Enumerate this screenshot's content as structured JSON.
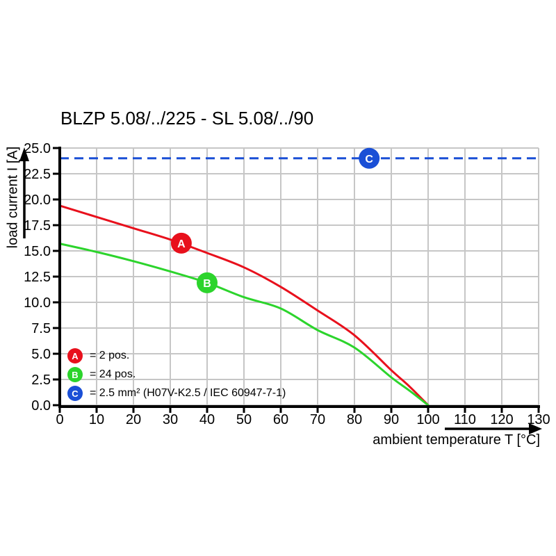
{
  "page": {
    "background": "#ffffff"
  },
  "chart_data": {
    "type": "line",
    "title": "BLZP 5.08/../225 - SL 5.08/../90",
    "xlabel": "ambient temperature T [°C]",
    "ylabel": "load current I [A]",
    "xlim": [
      0,
      130
    ],
    "ylim": [
      0,
      25
    ],
    "x_ticks": [
      0,
      10,
      20,
      30,
      40,
      50,
      60,
      70,
      80,
      90,
      100,
      110,
      120,
      130
    ],
    "y_ticks": [
      0,
      2.5,
      5,
      7.5,
      10,
      12.5,
      15,
      17.5,
      20,
      22.5,
      25
    ],
    "y_tick_labels": [
      "0.0",
      "2.5",
      "5.0",
      "7.5",
      "10.0",
      "12.5",
      "15.0",
      "17.5",
      "20.0",
      "22.5",
      "25.0"
    ],
    "grid": true,
    "legend_position": "lower-left",
    "colors": {
      "grid": "#c6c6c6",
      "axis": "#000000",
      "marker_letter": "#ffffff"
    },
    "series": [
      {
        "name": "A",
        "label": "= 2 pos.",
        "color": "#e8101c",
        "line_style": "solid",
        "points": [
          [
            0,
            19.4
          ],
          [
            10,
            18.3
          ],
          [
            20,
            17.2
          ],
          [
            30,
            16.1
          ],
          [
            40,
            14.8
          ],
          [
            50,
            13.4
          ],
          [
            60,
            11.5
          ],
          [
            70,
            9.2
          ],
          [
            80,
            6.8
          ],
          [
            90,
            3.4
          ],
          [
            95,
            1.8
          ],
          [
            100,
            0
          ]
        ],
        "marker": {
          "letter": "A",
          "t": 33,
          "i": 15.75
        }
      },
      {
        "name": "B",
        "label": "= 24 pos.",
        "color": "#2cd42c",
        "line_style": "solid",
        "points": [
          [
            0,
            15.7
          ],
          [
            10,
            14.9
          ],
          [
            20,
            14.0
          ],
          [
            30,
            13.0
          ],
          [
            40,
            11.9
          ],
          [
            50,
            10.5
          ],
          [
            60,
            9.4
          ],
          [
            70,
            7.3
          ],
          [
            80,
            5.6
          ],
          [
            90,
            2.7
          ],
          [
            95,
            1.4
          ],
          [
            100,
            0
          ]
        ],
        "marker": {
          "letter": "B",
          "t": 40,
          "i": 11.9
        }
      },
      {
        "name": "C",
        "label": "= 2.5 mm² (H07V-K2.5 / IEC 60947-7-1)",
        "color": "#1a4fd6",
        "line_style": "dashed",
        "points": [
          [
            0,
            24
          ],
          [
            130,
            24
          ]
        ],
        "marker": {
          "letter": "C",
          "t": 84,
          "i": 24
        }
      }
    ]
  }
}
